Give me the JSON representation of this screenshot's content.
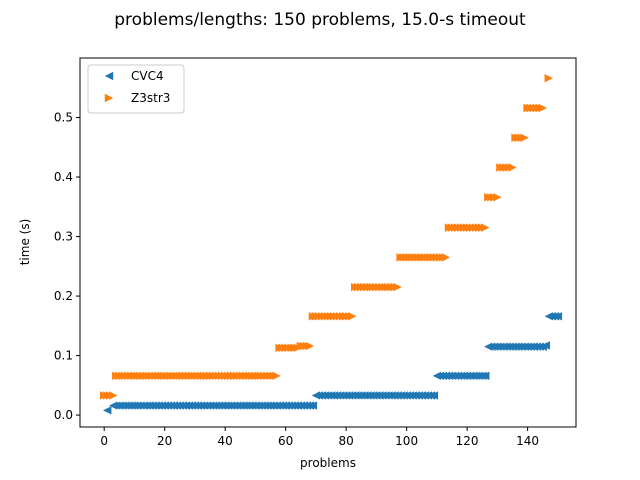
{
  "chart_data": {
    "type": "scatter",
    "title": "problems/lengths: 150 problems, 15.0-s timeout",
    "xlabel": "problems",
    "ylabel": "time (s)",
    "xlim": [
      -8,
      156
    ],
    "ylim": [
      -0.02,
      0.6
    ],
    "xticks": [
      0,
      20,
      40,
      60,
      80,
      100,
      120,
      140
    ],
    "yticks": [
      0.0,
      0.1,
      0.2,
      0.3,
      0.4,
      0.5
    ],
    "xtick_labels": [
      "0",
      "20",
      "40",
      "60",
      "80",
      "100",
      "120",
      "140"
    ],
    "ytick_labels": [
      "0.0",
      "0.1",
      "0.2",
      "0.3",
      "0.4",
      "0.5"
    ],
    "grid": false,
    "legend": "top-left",
    "series": [
      {
        "name": "CVC4",
        "marker": "triangle-left",
        "color": "#1f77b4",
        "segments": [
          {
            "x_start": 1,
            "x_end": 1,
            "y": 0.008
          },
          {
            "x_start": 3,
            "x_end": 69,
            "y": 0.016
          },
          {
            "x_start": 70,
            "x_end": 109,
            "y": 0.033
          },
          {
            "x_start": 110,
            "x_end": 126,
            "y": 0.066
          },
          {
            "x_start": 127,
            "x_end": 145,
            "y": 0.115
          },
          {
            "x_start": 146,
            "x_end": 146,
            "y": 0.117
          },
          {
            "x_start": 147,
            "x_end": 150,
            "y": 0.166
          }
        ]
      },
      {
        "name": "Z3str3",
        "marker": "triangle-right",
        "color": "#ff7f0e",
        "segments": [
          {
            "x_start": 0,
            "x_end": 3,
            "y": 0.033
          },
          {
            "x_start": 4,
            "x_end": 57,
            "y": 0.066
          },
          {
            "x_start": 58,
            "x_end": 64,
            "y": 0.113
          },
          {
            "x_start": 65,
            "x_end": 68,
            "y": 0.116
          },
          {
            "x_start": 69,
            "x_end": 82,
            "y": 0.166
          },
          {
            "x_start": 83,
            "x_end": 97,
            "y": 0.215
          },
          {
            "x_start": 98,
            "x_end": 113,
            "y": 0.265
          },
          {
            "x_start": 114,
            "x_end": 126,
            "y": 0.315
          },
          {
            "x_start": 127,
            "x_end": 130,
            "y": 0.366
          },
          {
            "x_start": 131,
            "x_end": 135,
            "y": 0.416
          },
          {
            "x_start": 136,
            "x_end": 139,
            "y": 0.466
          },
          {
            "x_start": 140,
            "x_end": 145,
            "y": 0.516
          },
          {
            "x_start": 147,
            "x_end": 147,
            "y": 0.566
          }
        ]
      }
    ]
  }
}
